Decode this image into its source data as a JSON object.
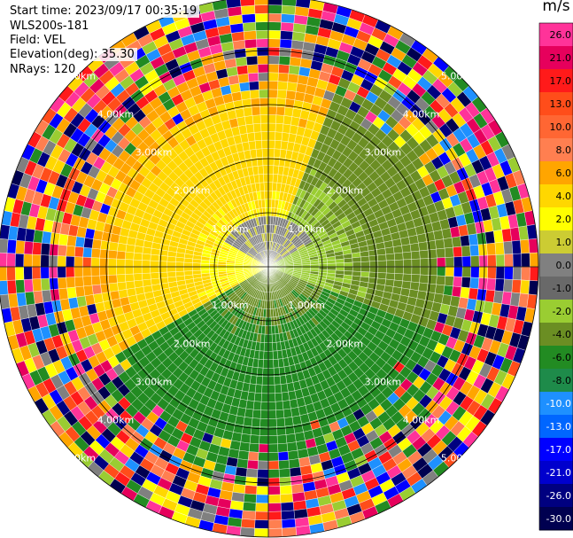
{
  "header": {
    "start_time": "Start time: 2023/09/17 00:35:19",
    "instrument": "WLS200s-181",
    "field": "Field: VEL",
    "elevation": "Elevation(deg): 35.30",
    "nrays": "NRays: 120"
  },
  "chart_data": {
    "type": "heatmap",
    "projection": "polar-ppi",
    "range_rings_km": [
      1.0,
      2.0,
      3.0,
      4.0,
      5.0
    ],
    "ring_label_suffix": "km",
    "max_range_km": 5.0,
    "grid": true,
    "colorbar": {
      "title": "m/s",
      "ticks": [
        "26.0",
        "21.0",
        "17.0",
        "13.0",
        "10.0",
        "8.0",
        "6.0",
        "4.0",
        "2.0",
        "1.0",
        "0.0",
        "-1.0",
        "-2.0",
        "-4.0",
        "-6.0",
        "-8.0",
        "-10.0",
        "-13.0",
        "-17.0",
        "-21.0",
        "-26.0",
        "-30.0"
      ],
      "colors": [
        "#ff3399",
        "#e6005c",
        "#ff1a1a",
        "#ff4d1a",
        "#ff6633",
        "#ff7f50",
        "#ffa500",
        "#ffd700",
        "#ffff00",
        "#cccc33",
        "#808080",
        "#696969",
        "#9acd32",
        "#6b8e23",
        "#228b22",
        "#1e8b4a",
        "#1e90ff",
        "#0066ff",
        "#0000ff",
        "#0000cd",
        "#000080",
        "#000050"
      ]
    }
  }
}
